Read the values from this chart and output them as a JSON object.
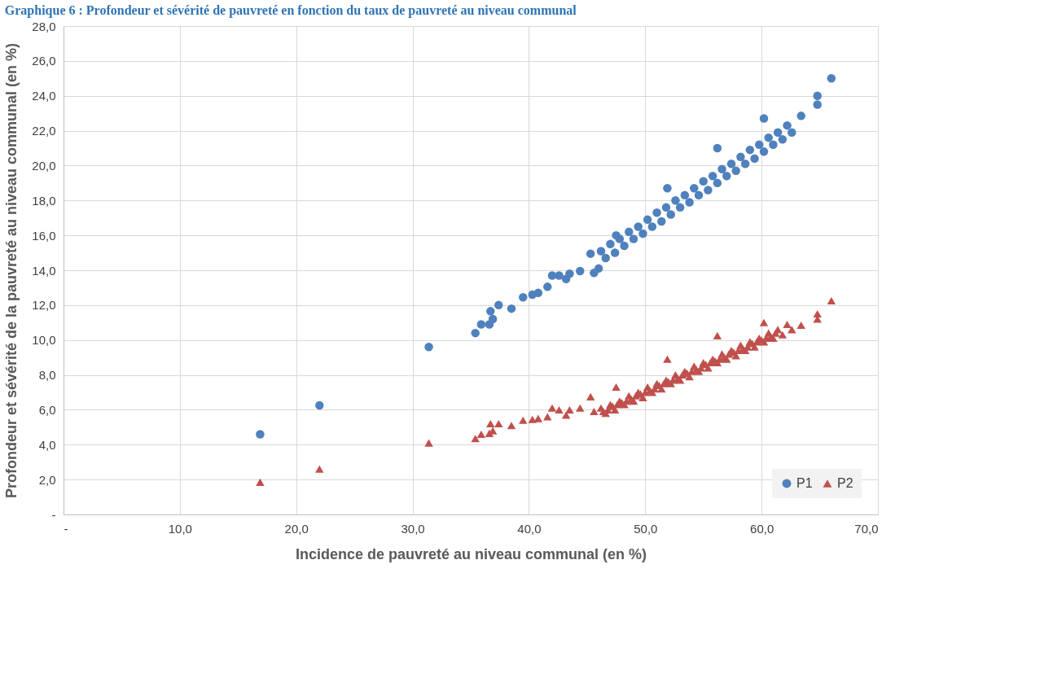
{
  "chart_data": {
    "type": "scatter",
    "title": "Graphique 6 : Profondeur et sévérité de pauvreté en fonction du taux de pauvreté au niveau communal",
    "xlabel": "Incidence de pauvreté au niveau communal (en %)",
    "ylabel": "Profondeur et sévérité de la pauvreté au niveau communal (en %)",
    "xlim": [
      0,
      70
    ],
    "xticks": [
      {
        "value": 0,
        "label": "-"
      },
      {
        "value": 10,
        "label": "10,0"
      },
      {
        "value": 20,
        "label": "20,0"
      },
      {
        "value": 30,
        "label": "30,0"
      },
      {
        "value": 40,
        "label": "40,0"
      },
      {
        "value": 50,
        "label": "50,0"
      },
      {
        "value": 60,
        "label": "60,0"
      },
      {
        "value": 70,
        "label": "70,0"
      }
    ],
    "ylim": [
      0,
      28
    ],
    "yticks": [
      {
        "value": 0,
        "label": "-"
      },
      {
        "value": 2,
        "label": "2,0"
      },
      {
        "value": 4,
        "label": "4,0"
      },
      {
        "value": 6,
        "label": "6,0"
      },
      {
        "value": 8,
        "label": "8,0"
      },
      {
        "value": 10,
        "label": "10,0"
      },
      {
        "value": 12,
        "label": "12,0"
      },
      {
        "value": 14,
        "label": "14,0"
      },
      {
        "value": 16,
        "label": "16,0"
      },
      {
        "value": 18,
        "label": "18,0"
      },
      {
        "value": 20,
        "label": "20,0"
      },
      {
        "value": 22,
        "label": "22,0"
      },
      {
        "value": 24,
        "label": "24,0"
      },
      {
        "value": 26,
        "label": "26,0"
      },
      {
        "value": 28,
        "label": "28,0"
      }
    ],
    "grid": true,
    "legend": "bottom right",
    "series": [
      {
        "name": "P1",
        "color": "#4f81bd",
        "marker": "circle",
        "x": [
          16.9,
          22.0,
          31.4,
          35.4,
          35.9,
          36.6,
          36.7,
          36.9,
          37.4,
          38.5,
          39.5,
          40.3,
          40.8,
          41.6,
          42.0,
          42.6,
          43.2,
          43.5,
          44.4,
          45.3,
          45.6,
          46.0,
          47.5,
          51.9,
          56.2,
          60.2,
          63.4,
          64.8,
          64.8,
          66.0,
          46.2,
          46.6,
          47.0,
          47.4,
          47.8,
          48.2,
          48.6,
          49.0,
          49.4,
          49.8,
          50.2,
          50.6,
          51.0,
          51.4,
          51.8,
          52.2,
          52.6,
          53.0,
          53.4,
          53.8,
          54.2,
          54.6,
          55.0,
          55.4,
          55.8,
          56.2,
          56.6,
          57.0,
          57.4,
          57.8,
          58.2,
          58.6,
          59.0,
          59.4,
          59.8,
          60.2,
          60.6,
          61.0,
          61.4,
          61.8,
          62.2,
          62.6
        ],
        "values": [
          4.6,
          6.25,
          9.6,
          10.4,
          10.9,
          10.9,
          11.65,
          11.2,
          12.0,
          11.8,
          12.45,
          12.6,
          12.7,
          13.05,
          13.7,
          13.7,
          13.5,
          13.8,
          13.95,
          14.95,
          13.85,
          14.1,
          16.0,
          18.7,
          21.0,
          22.7,
          22.85,
          24.0,
          23.5,
          25.0,
          15.1,
          14.7,
          15.5,
          15.0,
          15.8,
          15.4,
          16.2,
          15.8,
          16.5,
          16.1,
          16.9,
          16.5,
          17.3,
          16.8,
          17.6,
          17.2,
          18.0,
          17.6,
          18.3,
          17.9,
          18.7,
          18.3,
          19.1,
          18.6,
          19.4,
          19.0,
          19.8,
          19.4,
          20.1,
          19.7,
          20.5,
          20.1,
          20.9,
          20.4,
          21.2,
          20.8,
          21.6,
          21.2,
          21.9,
          21.5,
          22.3,
          21.9
        ]
      },
      {
        "name": "P2",
        "color": "#c0504d",
        "marker": "triangle",
        "x": [
          16.9,
          22.0,
          31.4,
          35.4,
          35.9,
          36.6,
          36.7,
          36.9,
          37.4,
          38.5,
          39.5,
          40.3,
          40.8,
          41.6,
          42.0,
          42.6,
          43.2,
          43.5,
          44.4,
          45.3,
          45.6,
          47.5,
          51.9,
          56.2,
          60.2,
          63.4,
          64.8,
          64.8,
          66.0,
          46.2,
          46.6,
          47.0,
          47.4,
          47.8,
          48.2,
          48.6,
          49.0,
          49.4,
          49.8,
          50.2,
          50.6,
          51.0,
          51.4,
          51.8,
          52.2,
          52.6,
          53.0,
          53.4,
          53.8,
          54.2,
          54.6,
          55.0,
          55.4,
          55.8,
          56.2,
          56.6,
          57.0,
          57.4,
          57.8,
          58.2,
          58.6,
          59.0,
          59.4,
          59.8,
          60.2,
          60.6,
          61.0,
          61.4,
          61.8,
          62.2,
          62.6,
          46.4,
          46.8,
          47.2,
          47.6,
          48.0,
          48.4,
          48.8,
          49.2,
          49.6,
          50.0,
          50.4,
          50.8,
          51.2,
          51.6,
          52.0,
          52.4,
          52.8,
          53.2,
          53.6,
          54.0,
          54.4,
          54.8,
          55.2,
          55.6,
          56.0,
          56.4,
          56.8,
          57.2,
          57.6,
          58.0,
          58.4,
          58.8,
          59.2,
          59.6,
          60.0,
          60.4,
          60.8,
          61.2
        ],
        "values": [
          1.85,
          2.6,
          4.1,
          4.35,
          4.6,
          4.65,
          5.2,
          4.8,
          5.2,
          5.1,
          5.4,
          5.45,
          5.5,
          5.6,
          6.1,
          6.0,
          5.7,
          6.0,
          6.1,
          6.75,
          5.9,
          7.3,
          8.9,
          10.25,
          11.0,
          10.85,
          11.5,
          11.2,
          12.25,
          6.1,
          5.8,
          6.3,
          6.0,
          6.5,
          6.3,
          6.8,
          6.5,
          7.0,
          6.7,
          7.3,
          7.0,
          7.5,
          7.2,
          7.7,
          7.5,
          8.0,
          7.7,
          8.2,
          7.9,
          8.5,
          8.2,
          8.7,
          8.4,
          8.9,
          8.7,
          9.2,
          8.9,
          9.4,
          9.1,
          9.7,
          9.4,
          9.9,
          9.6,
          10.1,
          9.9,
          10.4,
          10.1,
          10.6,
          10.3,
          10.9,
          10.6,
          5.9,
          6.0,
          6.2,
          6.3,
          6.4,
          6.5,
          6.6,
          6.8,
          6.9,
          7.0,
          7.1,
          7.2,
          7.4,
          7.5,
          7.6,
          7.7,
          7.8,
          8.0,
          8.1,
          8.2,
          8.3,
          8.4,
          8.6,
          8.7,
          8.8,
          8.9,
          9.0,
          9.2,
          9.3,
          9.4,
          9.5,
          9.6,
          9.8,
          9.9,
          10.0,
          10.1,
          10.2,
          10.4
        ]
      }
    ]
  }
}
